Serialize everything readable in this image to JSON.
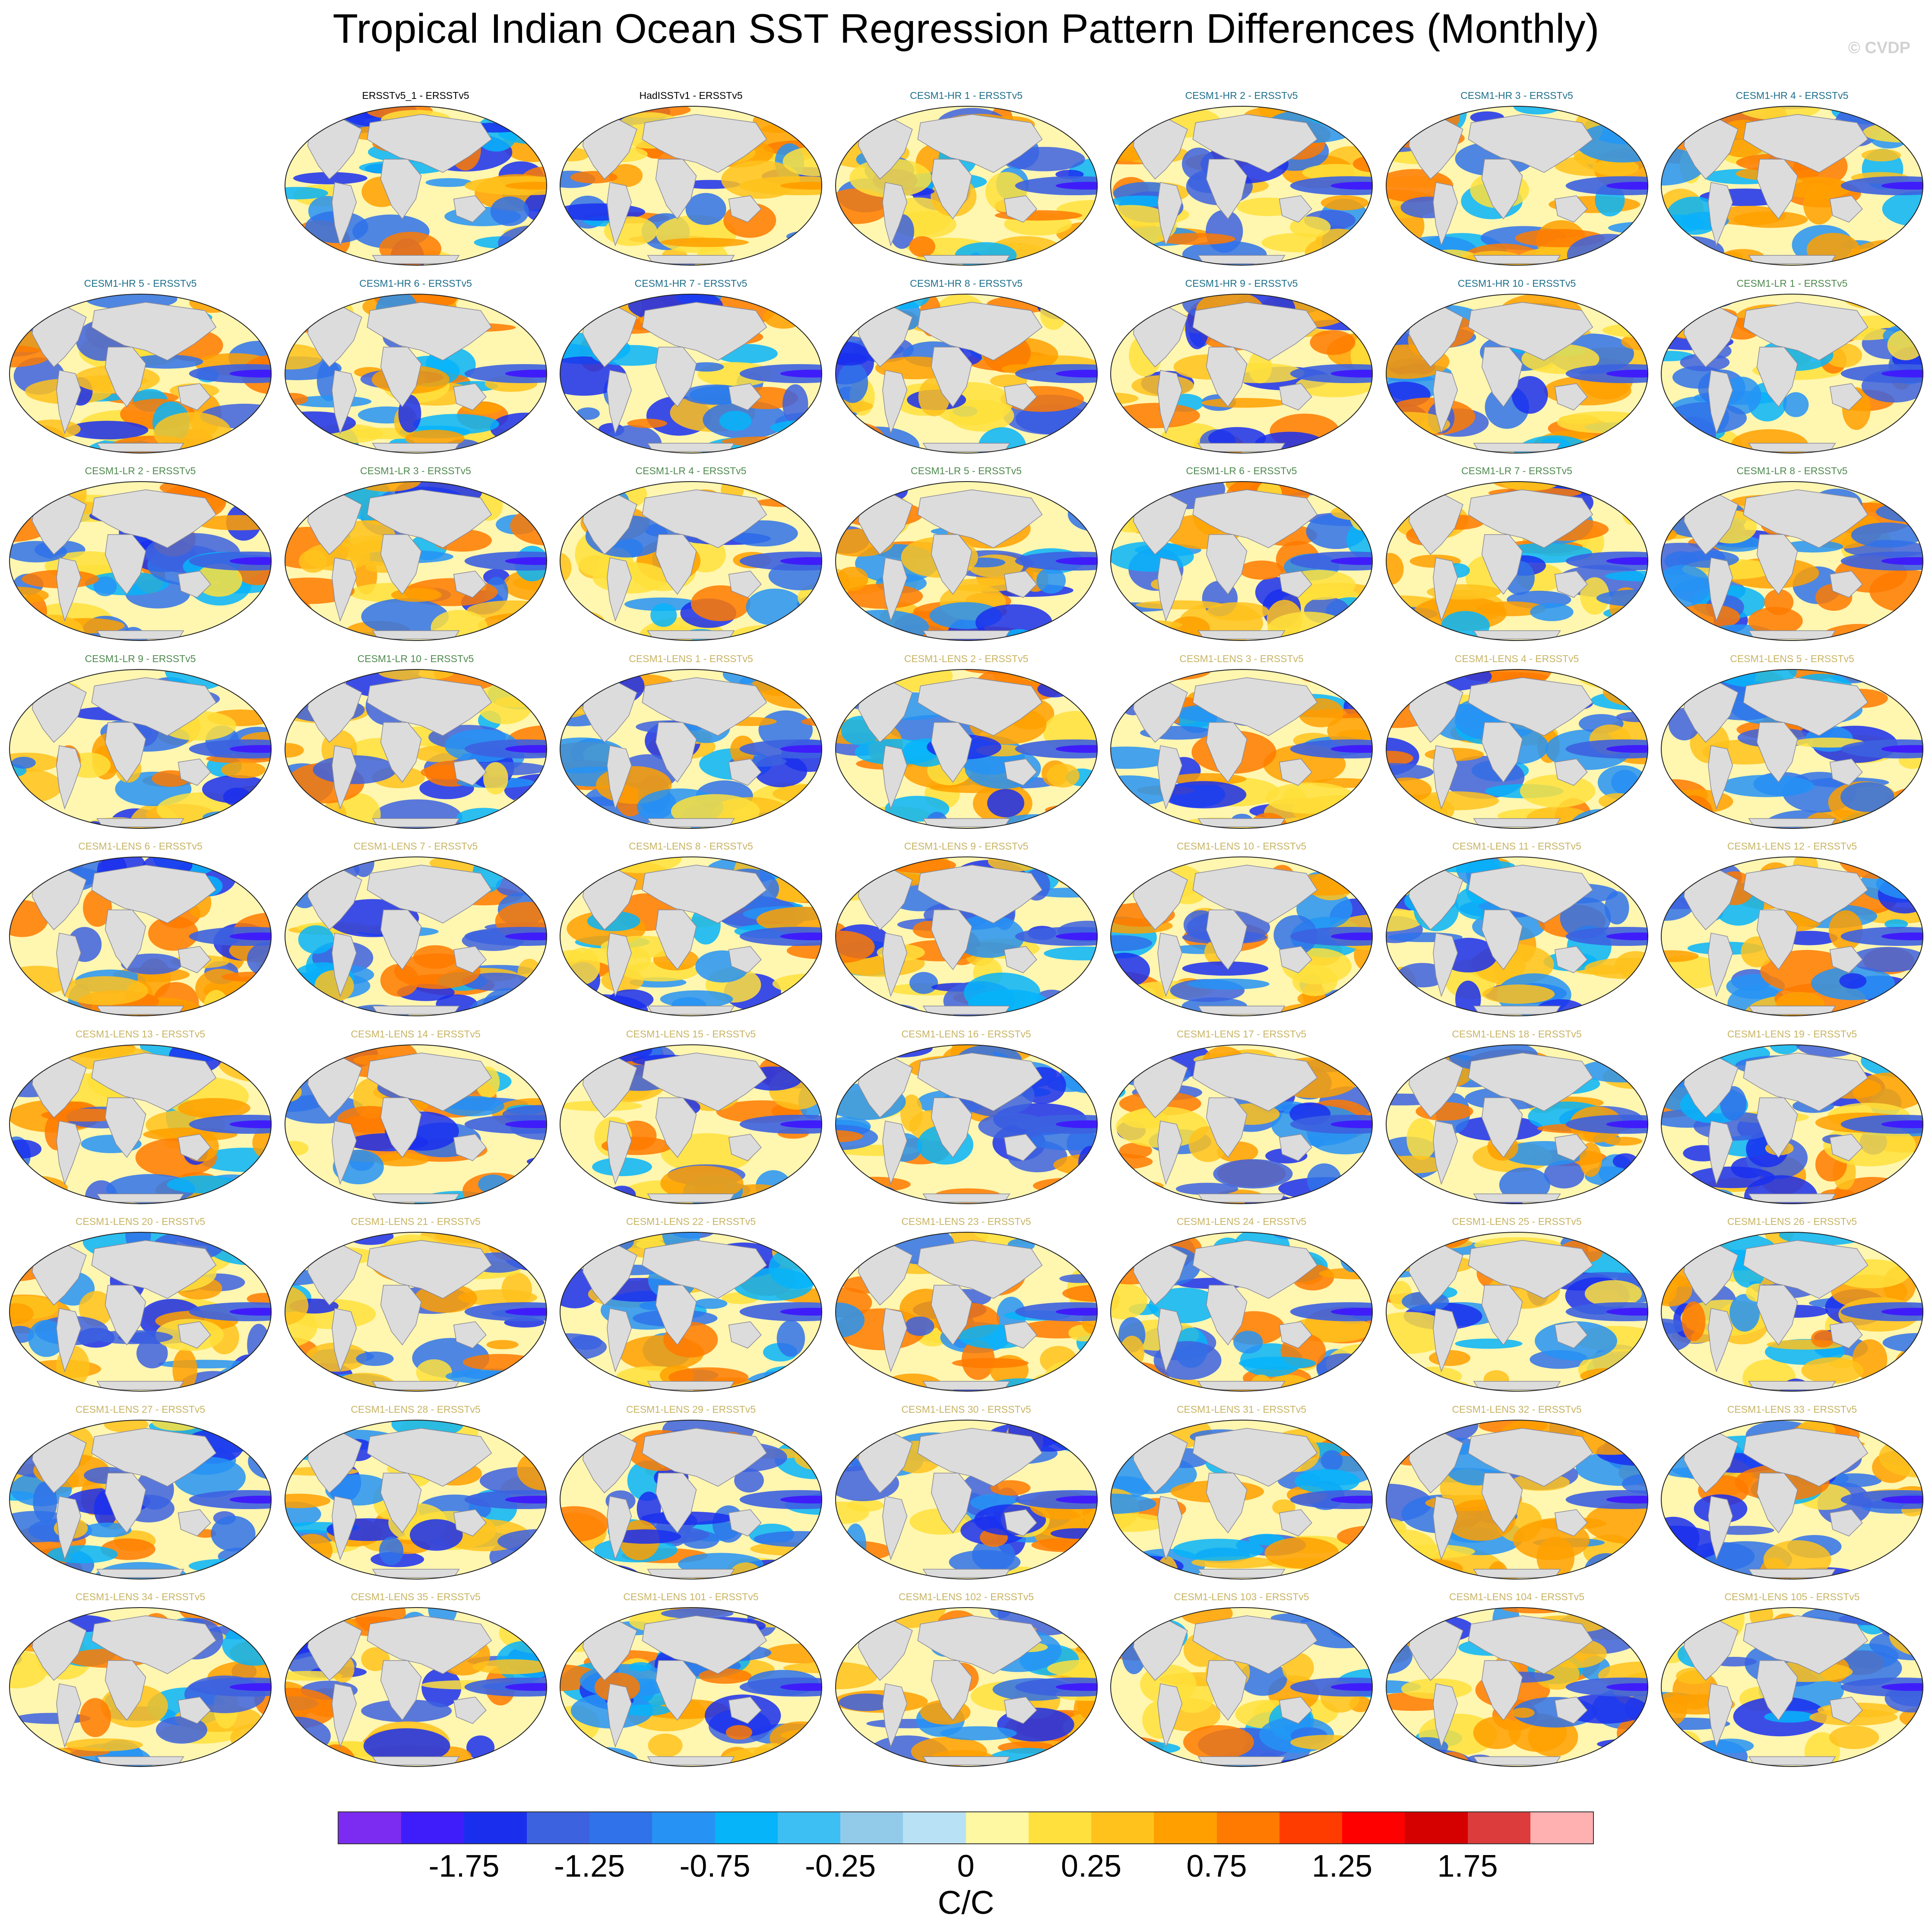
{
  "title": "Tropical Indian Ocean SST Regression Pattern Differences (Monthly)",
  "watermark": "© CVDP",
  "panels": [
    {
      "label": "ERSSTv5_1 - ERSSTv5",
      "group": "obs"
    },
    {
      "label": "HadISSTv1 - ERSSTv5",
      "group": "obs"
    },
    {
      "label": "CESM1-HR 1 - ERSSTv5",
      "group": "hr"
    },
    {
      "label": "CESM1-HR 2 - ERSSTv5",
      "group": "hr"
    },
    {
      "label": "CESM1-HR 3 - ERSSTv5",
      "group": "hr"
    },
    {
      "label": "CESM1-HR 4 - ERSSTv5",
      "group": "hr"
    },
    {
      "label": "CESM1-HR 5 - ERSSTv5",
      "group": "hr"
    },
    {
      "label": "CESM1-HR 6 - ERSSTv5",
      "group": "hr"
    },
    {
      "label": "CESM1-HR 7 - ERSSTv5",
      "group": "hr"
    },
    {
      "label": "CESM1-HR 8 - ERSSTv5",
      "group": "hr"
    },
    {
      "label": "CESM1-HR 9 - ERSSTv5",
      "group": "hr"
    },
    {
      "label": "CESM1-HR 10 - ERSSTv5",
      "group": "hr"
    },
    {
      "label": "CESM1-LR 1 - ERSSTv5",
      "group": "lr"
    },
    {
      "label": "CESM1-LR 2 - ERSSTv5",
      "group": "lr"
    },
    {
      "label": "CESM1-LR 3 - ERSSTv5",
      "group": "lr"
    },
    {
      "label": "CESM1-LR 4 - ERSSTv5",
      "group": "lr"
    },
    {
      "label": "CESM1-LR 5 - ERSSTv5",
      "group": "lr"
    },
    {
      "label": "CESM1-LR 6 - ERSSTv5",
      "group": "lr"
    },
    {
      "label": "CESM1-LR 7 - ERSSTv5",
      "group": "lr"
    },
    {
      "label": "CESM1-LR 8 - ERSSTv5",
      "group": "lr"
    },
    {
      "label": "CESM1-LR 9 - ERSSTv5",
      "group": "lr"
    },
    {
      "label": "CESM1-LR 10 - ERSSTv5",
      "group": "lr"
    },
    {
      "label": "CESM1-LENS 1 - ERSSTv5",
      "group": "lens"
    },
    {
      "label": "CESM1-LENS 2 - ERSSTv5",
      "group": "lens"
    },
    {
      "label": "CESM1-LENS 3 - ERSSTv5",
      "group": "lens"
    },
    {
      "label": "CESM1-LENS 4 - ERSSTv5",
      "group": "lens"
    },
    {
      "label": "CESM1-LENS 5 - ERSSTv5",
      "group": "lens"
    },
    {
      "label": "CESM1-LENS 6 - ERSSTv5",
      "group": "lens"
    },
    {
      "label": "CESM1-LENS 7 - ERSSTv5",
      "group": "lens"
    },
    {
      "label": "CESM1-LENS 8 - ERSSTv5",
      "group": "lens"
    },
    {
      "label": "CESM1-LENS 9 - ERSSTv5",
      "group": "lens"
    },
    {
      "label": "CESM1-LENS 10 - ERSSTv5",
      "group": "lens"
    },
    {
      "label": "CESM1-LENS 11 - ERSSTv5",
      "group": "lens"
    },
    {
      "label": "CESM1-LENS 12 - ERSSTv5",
      "group": "lens"
    },
    {
      "label": "CESM1-LENS 13 - ERSSTv5",
      "group": "lens"
    },
    {
      "label": "CESM1-LENS 14 - ERSSTv5",
      "group": "lens"
    },
    {
      "label": "CESM1-LENS 15 - ERSSTv5",
      "group": "lens"
    },
    {
      "label": "CESM1-LENS 16 - ERSSTv5",
      "group": "lens"
    },
    {
      "label": "CESM1-LENS 17 - ERSSTv5",
      "group": "lens"
    },
    {
      "label": "CESM1-LENS 18 - ERSSTv5",
      "group": "lens"
    },
    {
      "label": "CESM1-LENS 19 - ERSSTv5",
      "group": "lens"
    },
    {
      "label": "CESM1-LENS 20 - ERSSTv5",
      "group": "lens"
    },
    {
      "label": "CESM1-LENS 21 - ERSSTv5",
      "group": "lens"
    },
    {
      "label": "CESM1-LENS 22 - ERSSTv5",
      "group": "lens"
    },
    {
      "label": "CESM1-LENS 23 - ERSSTv5",
      "group": "lens"
    },
    {
      "label": "CESM1-LENS 24 - ERSSTv5",
      "group": "lens"
    },
    {
      "label": "CESM1-LENS 25 - ERSSTv5",
      "group": "lens"
    },
    {
      "label": "CESM1-LENS 26 - ERSSTv5",
      "group": "lens"
    },
    {
      "label": "CESM1-LENS 27 - ERSSTv5",
      "group": "lens"
    },
    {
      "label": "CESM1-LENS 28 - ERSSTv5",
      "group": "lens"
    },
    {
      "label": "CESM1-LENS 29 - ERSSTv5",
      "group": "lens"
    },
    {
      "label": "CESM1-LENS 30 - ERSSTv5",
      "group": "lens"
    },
    {
      "label": "CESM1-LENS 31 - ERSSTv5",
      "group": "lens"
    },
    {
      "label": "CESM1-LENS 32 - ERSSTv5",
      "group": "lens"
    },
    {
      "label": "CESM1-LENS 33 - ERSSTv5",
      "group": "lens"
    },
    {
      "label": "CESM1-LENS 34 - ERSSTv5",
      "group": "lens"
    },
    {
      "label": "CESM1-LENS 35 - ERSSTv5",
      "group": "lens"
    },
    {
      "label": "CESM1-LENS 101 - ERSSTv5",
      "group": "lens"
    },
    {
      "label": "CESM1-LENS 102 - ERSSTv5",
      "group": "lens"
    },
    {
      "label": "CESM1-LENS 103 - ERSSTv5",
      "group": "lens"
    },
    {
      "label": "CESM1-LENS 104 - ERSSTv5",
      "group": "lens"
    },
    {
      "label": "CESM1-LENS 105 - ERSSTv5",
      "group": "lens"
    }
  ],
  "colorbar": {
    "colors": [
      "#7b2cf0",
      "#3f1dfa",
      "#1a2fee",
      "#3c62e0",
      "#2f72ea",
      "#2693f4",
      "#06b4fa",
      "#3dbff4",
      "#92cbea",
      "#b9e1f5",
      "#fff8a2",
      "#ffe03c",
      "#ffc21c",
      "#ffa000",
      "#ff7a00",
      "#ff3c00",
      "#ff0000",
      "#d50000",
      "#dc3c3c",
      "#ffb0b0"
    ],
    "tick_labels": [
      "-1.75",
      "-1.25",
      "-0.75",
      "-0.25",
      "0",
      "0.25",
      "0.75",
      "1.25",
      "1.75"
    ],
    "tick_values": [
      -1.75,
      -1.25,
      -0.75,
      -0.25,
      0,
      0.25,
      0.75,
      1.25,
      1.75
    ],
    "units": "C/C"
  },
  "colors": {
    "land": "#dcdcdc",
    "ocean_neutral": "#fff6b0",
    "obs_label": "#000000",
    "hr_label": "#1f6f8b",
    "lr_label": "#4f8a4f",
    "lens_label": "#c8b464"
  }
}
